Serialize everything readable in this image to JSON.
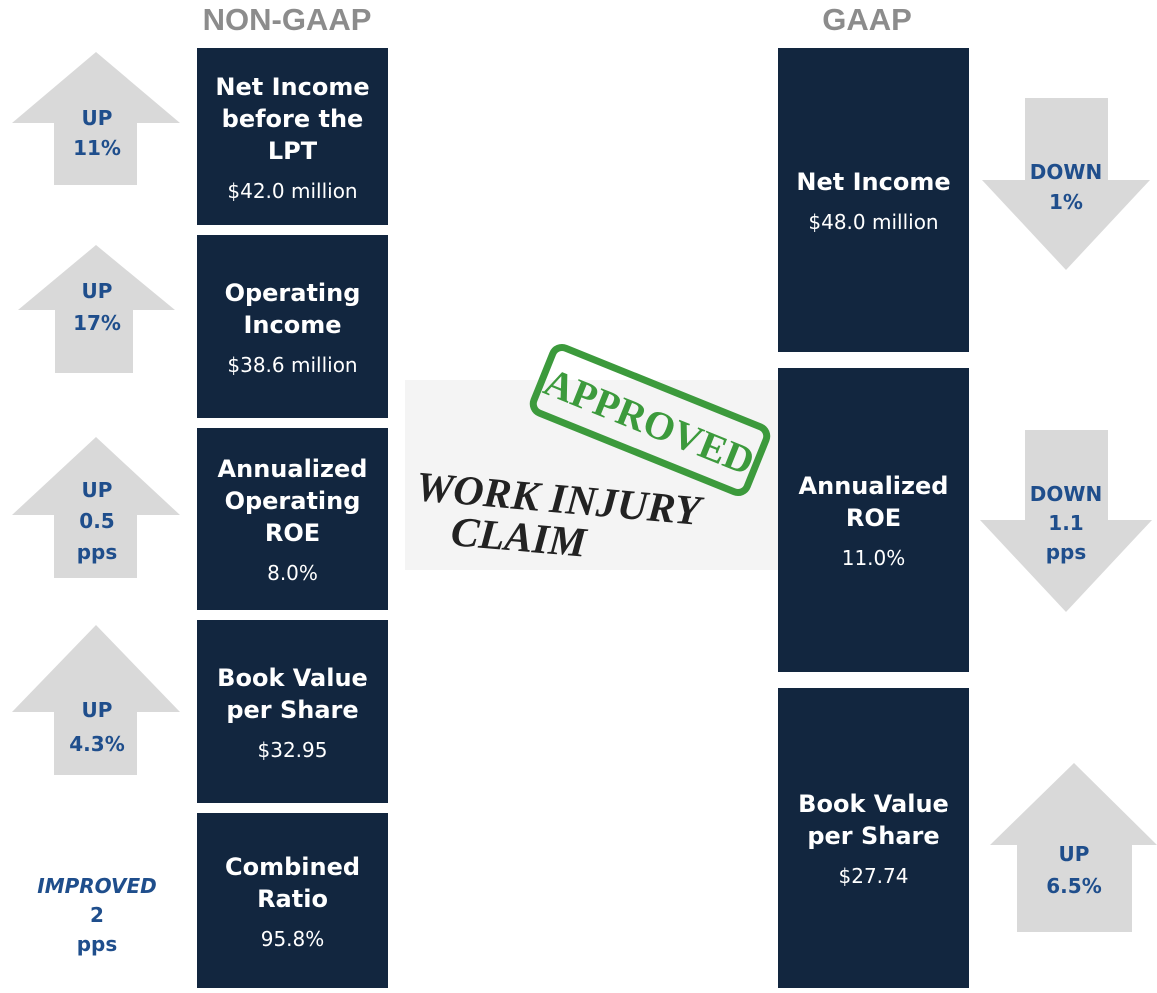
{
  "headers": {
    "non_gaap": "NON-GAAP",
    "gaap": "GAAP"
  },
  "non_gaap": [
    {
      "title": [
        "Net Income",
        "before the",
        "LPT"
      ],
      "value": "$42.0 million",
      "change": [
        "UP",
        "11%"
      ]
    },
    {
      "title": [
        "Operating",
        "Income"
      ],
      "value": "$38.6 million",
      "change": [
        "UP",
        "17%"
      ]
    },
    {
      "title": [
        "Annualized",
        "Operating",
        "ROE"
      ],
      "value": "8.0%",
      "change": [
        "UP",
        "0.5",
        "pps"
      ]
    },
    {
      "title": [
        "Book Value",
        "per Share"
      ],
      "value": "$32.95",
      "change": [
        "UP",
        "4.3%"
      ]
    },
    {
      "title": [
        "Combined",
        "Ratio"
      ],
      "value": "95.8%",
      "change": [
        "IMPROVED",
        "2",
        "pps"
      ]
    }
  ],
  "gaap": [
    {
      "title": [
        "Net Income"
      ],
      "value": "$48.0 million",
      "change": [
        "DOWN",
        "1%"
      ]
    },
    {
      "title": [
        "Annualized",
        "ROE"
      ],
      "value": "11.0%",
      "change": [
        "DOWN",
        "1.1",
        "pps"
      ]
    },
    {
      "title": [
        "Book Value",
        "per Share"
      ],
      "value": "$27.74",
      "change": [
        "UP",
        "6.5%"
      ]
    }
  ],
  "image": {
    "stamp": "APPROVED",
    "text": [
      "WORK INJURY",
      "CLAIM"
    ]
  }
}
